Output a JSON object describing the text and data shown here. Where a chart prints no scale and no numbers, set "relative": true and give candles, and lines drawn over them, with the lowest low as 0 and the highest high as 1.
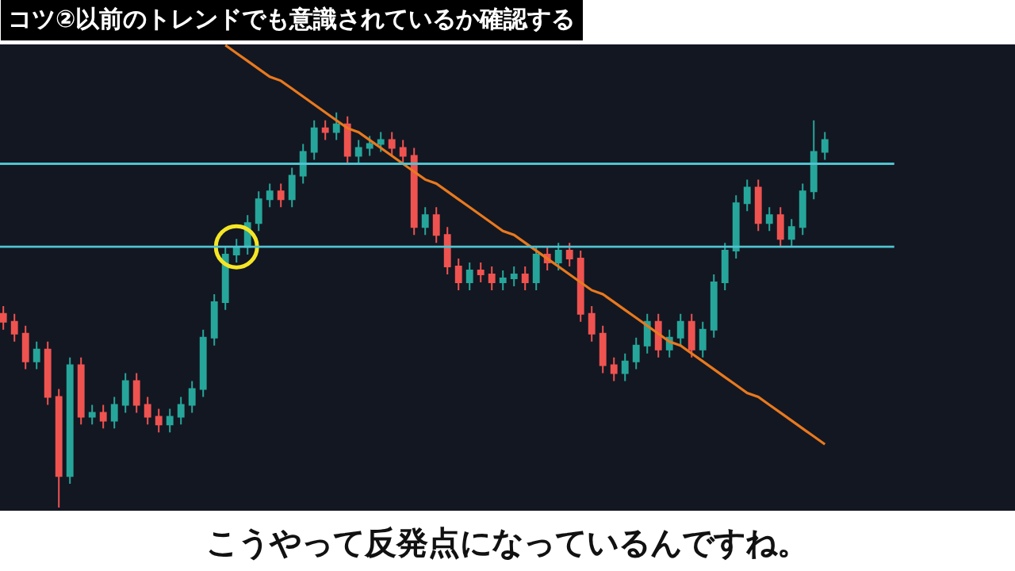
{
  "chart_data": {
    "type": "candlestick",
    "relative": true,
    "tick_labels": false,
    "title": "コツ②以前のトレンドでも意識されているか確認する",
    "annotations": [
      "こうやって反発点になっているんですね。"
    ],
    "categories": [
      null,
      null,
      null,
      null,
      null,
      null,
      null,
      null,
      null,
      null,
      null,
      null,
      null,
      null,
      null,
      null,
      null,
      null,
      null,
      null,
      null,
      null,
      null,
      null,
      null,
      null,
      null,
      null,
      null,
      null,
      null,
      null,
      null,
      null,
      null,
      null,
      null,
      null,
      null,
      null,
      null,
      null,
      null,
      null,
      null,
      null,
      null,
      null,
      null,
      null,
      null,
      null,
      null,
      null,
      null,
      null,
      null,
      null,
      null,
      null,
      null,
      null,
      null,
      null,
      null,
      null,
      null,
      null,
      null,
      null,
      null,
      null,
      null,
      null,
      null
    ],
    "ohlc": [
      [
        0.49,
        0.51,
        0.45,
        0.47
      ],
      [
        0.47,
        0.49,
        0.42,
        0.44
      ],
      [
        0.44,
        0.46,
        0.35,
        0.37
      ],
      [
        0.37,
        0.42,
        0.35,
        0.4
      ],
      [
        0.4,
        0.42,
        0.26,
        0.28
      ],
      [
        0.28,
        0.3,
        0,
        0.08
      ],
      [
        0.08,
        0.38,
        0.06,
        0.36
      ],
      [
        0.36,
        0.38,
        0.21,
        0.23
      ],
      [
        0.23,
        0.26,
        0.21,
        0.24
      ],
      [
        0.24,
        0.26,
        0.2,
        0.22
      ],
      [
        0.22,
        0.28,
        0.2,
        0.26
      ],
      [
        0.26,
        0.34,
        0.24,
        0.32
      ],
      [
        0.32,
        0.34,
        0.24,
        0.26
      ],
      [
        0.26,
        0.28,
        0.21,
        0.23
      ],
      [
        0.23,
        0.25,
        0.19,
        0.21
      ],
      [
        0.21,
        0.25,
        0.19,
        0.23
      ],
      [
        0.23,
        0.28,
        0.21,
        0.26
      ],
      [
        0.26,
        0.32,
        0.24,
        0.3
      ],
      [
        0.3,
        0.45,
        0.28,
        0.43
      ],
      [
        0.43,
        0.54,
        0.41,
        0.52
      ],
      [
        0.52,
        0.66,
        0.5,
        0.64
      ],
      [
        0.64,
        0.68,
        0.62,
        0.66
      ],
      [
        0.66,
        0.74,
        0.64,
        0.72
      ],
      [
        0.72,
        0.8,
        0.7,
        0.78
      ],
      [
        0.78,
        0.82,
        0.76,
        0.8
      ],
      [
        0.8,
        0.82,
        0.76,
        0.78
      ],
      [
        0.78,
        0.86,
        0.76,
        0.84
      ],
      [
        0.84,
        0.92,
        0.82,
        0.9
      ],
      [
        0.9,
        0.98,
        0.88,
        0.96
      ],
      [
        0.96,
        0.98,
        0.93,
        0.95
      ],
      [
        0.95,
        1,
        0.93,
        0.97
      ],
      [
        0.97,
        0.99,
        0.87,
        0.89
      ],
      [
        0.89,
        0.93,
        0.87,
        0.91
      ],
      [
        0.91,
        0.94,
        0.89,
        0.92
      ],
      [
        0.92,
        0.95,
        0.9,
        0.93
      ],
      [
        0.93,
        0.95,
        0.89,
        0.91
      ],
      [
        0.91,
        0.93,
        0.87,
        0.89
      ],
      [
        0.89,
        0.91,
        0.69,
        0.71
      ],
      [
        0.71,
        0.76,
        0.69,
        0.74
      ],
      [
        0.74,
        0.76,
        0.67,
        0.69
      ],
      [
        0.69,
        0.71,
        0.59,
        0.61
      ],
      [
        0.61,
        0.63,
        0.55,
        0.57
      ],
      [
        0.57,
        0.62,
        0.55,
        0.6
      ],
      [
        0.6,
        0.62,
        0.57,
        0.59
      ],
      [
        0.59,
        0.61,
        0.55,
        0.57
      ],
      [
        0.57,
        0.6,
        0.55,
        0.58
      ],
      [
        0.58,
        0.61,
        0.56,
        0.59
      ],
      [
        0.59,
        0.61,
        0.55,
        0.57
      ],
      [
        0.57,
        0.66,
        0.55,
        0.64
      ],
      [
        0.64,
        0.66,
        0.6,
        0.62
      ],
      [
        0.62,
        0.67,
        0.6,
        0.65
      ],
      [
        0.65,
        0.67,
        0.61,
        0.63
      ],
      [
        0.63,
        0.65,
        0.47,
        0.49
      ],
      [
        0.49,
        0.51,
        0.42,
        0.44
      ],
      [
        0.44,
        0.46,
        0.34,
        0.36
      ],
      [
        0.36,
        0.38,
        0.32,
        0.34
      ],
      [
        0.34,
        0.39,
        0.32,
        0.37
      ],
      [
        0.37,
        0.43,
        0.35,
        0.41
      ],
      [
        0.41,
        0.49,
        0.39,
        0.47
      ],
      [
        0.47,
        0.49,
        0.38,
        0.4
      ],
      [
        0.4,
        0.45,
        0.38,
        0.43
      ],
      [
        0.43,
        0.49,
        0.41,
        0.47
      ],
      [
        0.47,
        0.49,
        0.38,
        0.4
      ],
      [
        0.4,
        0.47,
        0.38,
        0.45
      ],
      [
        0.45,
        0.59,
        0.43,
        0.57
      ],
      [
        0.57,
        0.67,
        0.55,
        0.65
      ],
      [
        0.65,
        0.79,
        0.63,
        0.77
      ],
      [
        0.77,
        0.83,
        0.75,
        0.81
      ],
      [
        0.81,
        0.83,
        0.7,
        0.72
      ],
      [
        0.72,
        0.76,
        0.7,
        0.74
      ],
      [
        0.74,
        0.76,
        0.66,
        0.68
      ],
      [
        0.68,
        0.73,
        0.66,
        0.71
      ],
      [
        0.71,
        0.82,
        0.69,
        0.8
      ],
      [
        0.8,
        0.98,
        0.78,
        0.9
      ],
      [
        0.9,
        0.95,
        0.88,
        0.93
      ]
    ],
    "colors": [
      "#ef5350",
      "#ef5350",
      "#ef5350",
      "#26a69a",
      "#ef5350",
      "#ef5350",
      "#26a69a",
      "#ef5350",
      "#26a69a",
      "#ef5350",
      "#26a69a",
      "#26a69a",
      "#ef5350",
      "#ef5350",
      "#ef5350",
      "#26a69a",
      "#26a69a",
      "#26a69a",
      "#26a69a",
      "#26a69a",
      "#26a69a",
      "#26a69a",
      "#26a69a",
      "#26a69a",
      "#26a69a",
      "#ef5350",
      "#26a69a",
      "#26a69a",
      "#26a69a",
      "#ef5350",
      "#26a69a",
      "#ef5350",
      "#26a69a",
      "#26a69a",
      "#26a69a",
      "#ef5350",
      "#ef5350",
      "#ef5350",
      "#26a69a",
      "#ef5350",
      "#ef5350",
      "#ef5350",
      "#26a69a",
      "#ef5350",
      "#ef5350",
      "#26a69a",
      "#26a69a",
      "#ef5350",
      "#26a69a",
      "#ef5350",
      "#26a69a",
      "#ef5350",
      "#ef5350",
      "#ef5350",
      "#ef5350",
      "#ef5350",
      "#26a69a",
      "#26a69a",
      "#26a69a",
      "#ef5350",
      "#26a69a",
      "#26a69a",
      "#ef5350",
      "#26a69a",
      "#26a69a",
      "#26a69a",
      "#26a69a",
      "#26a69a",
      "#ef5350",
      "#26a69a",
      "#ef5350",
      "#26a69a",
      "#26a69a",
      "#26a69a",
      "#26a69a"
    ],
    "series": [
      {
        "type": "line",
        "values": [
          null,
          null,
          null,
          null,
          null,
          null,
          null,
          null,
          null,
          null,
          null,
          null,
          null,
          null,
          null,
          null,
          null,
          null,
          null,
          null,
          1.17,
          1.15,
          1.13,
          1.11,
          1.09,
          1.08,
          1.06,
          1.04,
          1.02,
          1.0,
          0.98,
          0.96,
          0.95,
          0.93,
          0.91,
          0.89,
          0.87,
          0.85,
          0.83,
          0.82,
          0.8,
          0.78,
          0.76,
          0.74,
          0.72,
          0.7,
          0.69,
          0.67,
          0.65,
          0.63,
          0.61,
          0.59,
          0.57,
          0.55,
          0.54,
          0.52,
          0.5,
          0.48,
          0.46,
          0.44,
          0.42,
          0.41,
          0.39,
          0.37,
          0.35,
          0.33,
          0.31,
          0.29,
          0.28,
          0.26,
          0.24,
          0.22,
          0.2,
          0.18,
          0.16
        ],
        "color": "#e8791e",
        "line_style": "solid"
      },
      {
        "type": "scatter",
        "marker": "circle",
        "values": [
          null,
          null,
          null,
          null,
          null,
          null,
          null,
          null,
          null,
          null,
          null,
          null,
          null,
          null,
          null,
          null,
          null,
          null,
          null,
          null,
          null,
          0.66,
          null,
          null,
          null,
          null,
          null,
          null,
          null,
          null,
          null,
          null,
          null,
          null,
          null,
          null,
          null,
          null,
          null,
          null,
          null,
          null,
          null,
          null,
          null,
          null,
          null,
          null,
          null,
          null,
          null,
          null,
          null,
          null,
          null,
          null,
          null,
          null,
          null,
          null,
          null,
          null,
          null,
          null,
          null,
          null,
          null,
          null,
          null,
          null,
          null,
          null,
          null,
          null,
          null
        ],
        "color": "#f5e625"
      }
    ],
    "ref_lines": [
      {
        "axis": "y",
        "value": 0.87,
        "color": "#4fc3d0"
      },
      {
        "axis": "y",
        "value": 0.66,
        "color": "#4fc3d0"
      }
    ]
  }
}
